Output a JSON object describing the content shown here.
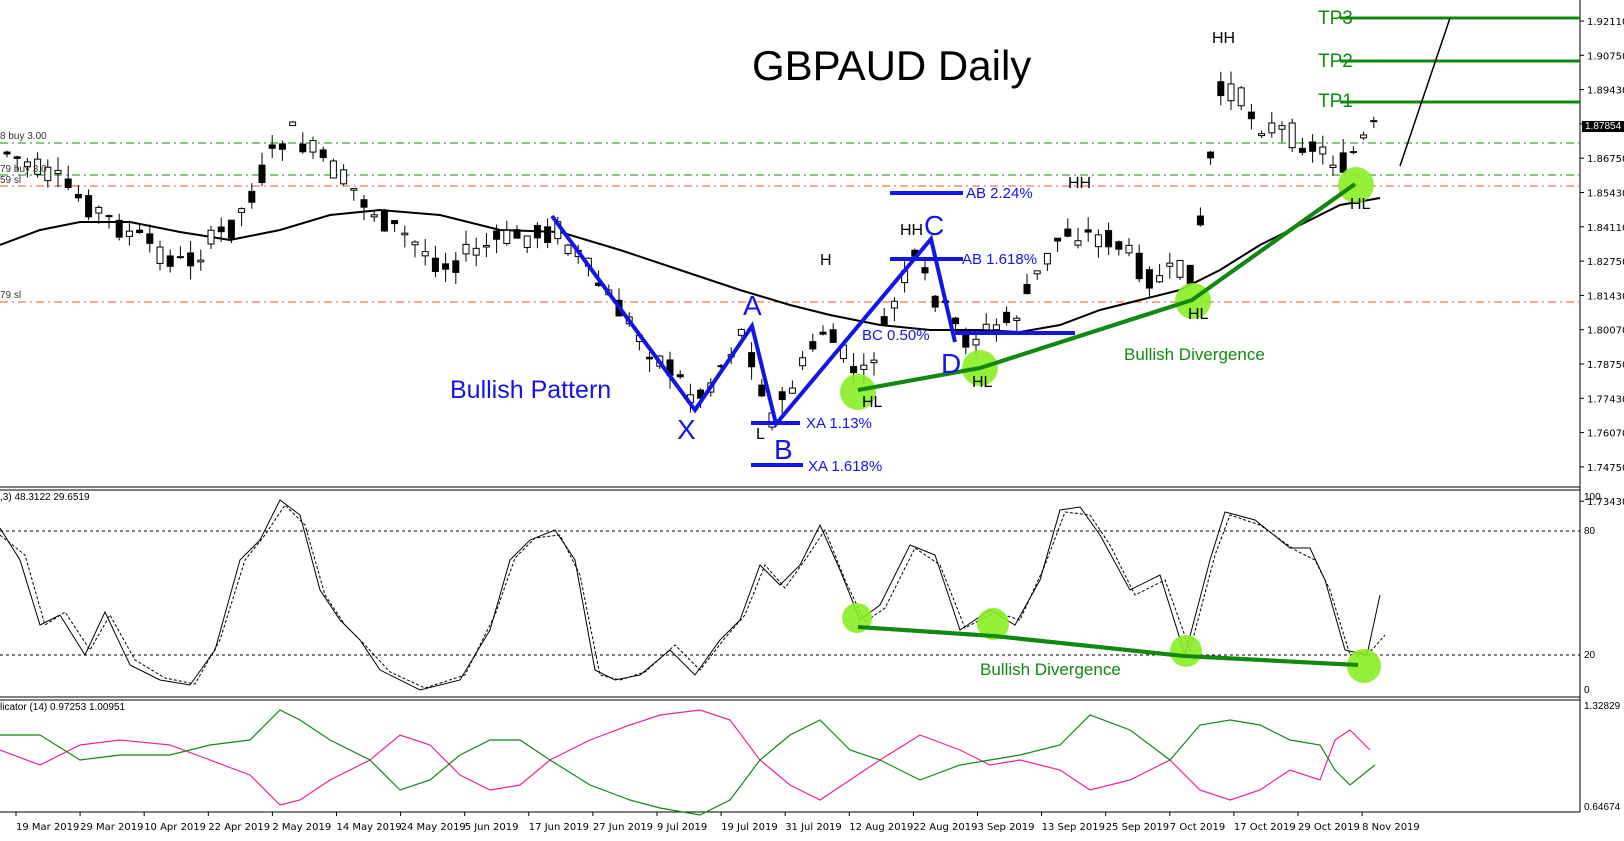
{
  "chart_data": [
    {
      "type": "line",
      "title": "GBPAUD Daily",
      "subtype": "candlestick",
      "price_axis_ticks": [
        "1.92110",
        "1.90750",
        "1.89430",
        "1.88110",
        "1.86750",
        "1.85430",
        "1.84110",
        "1.82750",
        "1.81430",
        "1.80070",
        "1.78750",
        "1.77430",
        "1.76070",
        "1.74750",
        "1.73430"
      ],
      "current_price": "1.87854",
      "date_axis_ticks": [
        "19 Mar 2019",
        "29 Mar 2019",
        "10 Apr 2019",
        "22 Apr 2019",
        "2 May 2019",
        "14 May 2019",
        "24 May 2019",
        "5 Jun 2019",
        "17 Jun 2019",
        "27 Jun 2019",
        "9 Jul 2019",
        "19 Jul 2019",
        "31 Jul 2019",
        "12 Aug 2019",
        "22 Aug 2019",
        "3 Sep 2019",
        "13 Sep 2019",
        "25 Sep 2019",
        "7 Oct 2019",
        "17 Oct 2019",
        "29 Oct 2019",
        "8 Nov 2019"
      ],
      "horizontal_levels": [
        {
          "label": "TP3",
          "price": 1.9211,
          "color": "#118811"
        },
        {
          "label": "TP2",
          "price": 1.9075,
          "color": "#118811"
        },
        {
          "label": "TP1",
          "price": 1.8855,
          "color": "#118811"
        },
        {
          "label": "buy 3.00",
          "price": 1.8705,
          "color": "#118811",
          "style": "dash-dot"
        },
        {
          "label": "buy 3",
          "price": 1.8585,
          "color": "#118811",
          "style": "dash-dot"
        },
        {
          "label": "sl",
          "price": 1.8553,
          "color": "#ee5522",
          "style": "dash-dot"
        },
        {
          "label": "sl",
          "price": 1.8102,
          "color": "#ee5522",
          "style": "dash-dot"
        }
      ],
      "pattern": {
        "name": "Bullish Pattern",
        "points": [
          "X",
          "A",
          "B",
          "C",
          "D"
        ],
        "fib_labels": [
          "XA 1.13%",
          "XA 1.618%",
          "AB 1.618%",
          "AB 2.24%",
          "BC 0.50%"
        ]
      },
      "swing_labels": [
        "HH",
        "HH",
        "HH",
        "H",
        "HL",
        "HL",
        "HL",
        "HL",
        "L"
      ],
      "annotations": [
        "Bullish Divergence"
      ]
    },
    {
      "type": "line",
      "title": "Stochastic",
      "header": ",3) 48.3122 29.6519",
      "values_shown": [
        48.3122,
        29.6519
      ],
      "ylim": [
        0,
        100
      ],
      "levels": [
        20,
        80
      ],
      "y_ticks": [
        "100",
        "80",
        "20",
        "0"
      ],
      "annotations": [
        "Bullish Divergence"
      ]
    },
    {
      "type": "line",
      "title": "Indicator (14)",
      "header": "licator (14)  0.97253 1.00951",
      "values_shown": [
        0.97253,
        1.00951
      ],
      "ylim": [
        0.64674,
        1.32829
      ],
      "y_ticks": [
        "1.32829",
        "0.64674"
      ],
      "series": [
        {
          "name": "plus",
          "color": "#ee2299"
        },
        {
          "name": "minus",
          "color": "#118811"
        }
      ]
    }
  ],
  "title": "GBPAUD Daily",
  "tp": {
    "tp1": "TP1",
    "tp2": "TP2",
    "tp3": "TP3"
  },
  "left_labels": {
    "buy1": "8 buy 3.00",
    "buy2": "79 buy 3.0",
    "sl1": "59 sl",
    "sl2": "79 sl"
  },
  "pattern_labels": {
    "x": "X",
    "a": "A",
    "b": "B",
    "c": "C",
    "d": "D",
    "l": "L",
    "title": "Bullish Pattern",
    "xa113": "XA 1.13%",
    "xa1618": "XA 1.618%",
    "ab1618": "AB 1.618%",
    "ab224": "AB 2.24%",
    "bc050": "BC 0.50%"
  },
  "swing": {
    "hh1": "HH",
    "hh2": "HH",
    "hh3": "HH",
    "h": "H",
    "hl1": "HL",
    "hl2": "HL",
    "hl3": "HL",
    "hl4": "HL"
  },
  "divergence_label": "Bullish Divergence",
  "stoch_header": ",3) 48.3122 29.6519",
  "stoch_ticks": {
    "t100": "100",
    "t80": "80",
    "t20": "20",
    "t0": "0"
  },
  "ind_header": "licator (14)  0.97253 1.00951",
  "ind_ticks": {
    "top": "1.32829",
    "bottom": "0.64674"
  },
  "price_ticks": [
    "1.92110",
    "1.90750",
    "1.89430",
    "1.88110",
    "1.86750",
    "1.85430",
    "1.84110",
    "1.82750",
    "1.81430",
    "1.80070",
    "1.78750",
    "1.77430",
    "1.76070",
    "1.74750",
    "1.73430"
  ],
  "current_price": "1.87854",
  "dates": [
    "19 Mar 2019",
    "29 Mar 2019",
    "10 Apr 2019",
    "22 Apr 2019",
    "2 May 2019",
    "14 May 2019",
    "24 May 2019",
    "5 Jun 2019",
    "17 Jun 2019",
    "27 Jun 2019",
    "9 Jul 2019",
    "19 Jul 2019",
    "31 Jul 2019",
    "12 Aug 2019",
    "22 Aug 2019",
    "3 Sep 2019",
    "13 Sep 2019",
    "25 Sep 2019",
    "7 Oct 2019",
    "17 Oct 2019",
    "29 Oct 2019",
    "8 Nov 2019"
  ],
  "colors": {
    "pattern": "#1414e6",
    "green": "#118811",
    "orange": "#ee5522",
    "pink": "#ee2299",
    "highlight": "#88ee22"
  }
}
